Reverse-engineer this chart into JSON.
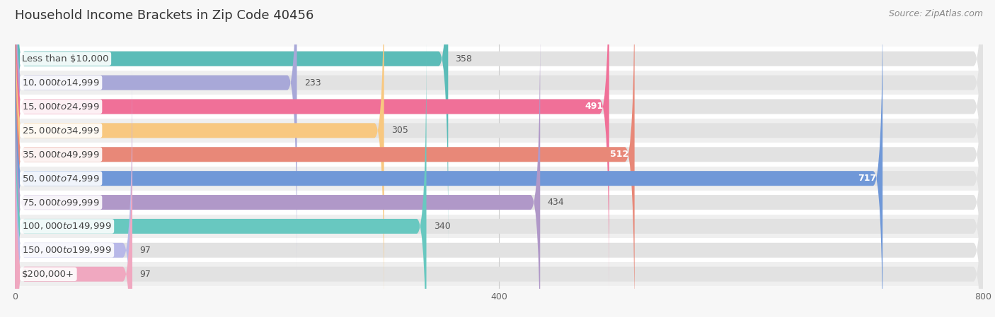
{
  "title": "Household Income Brackets in Zip Code 40456",
  "source": "Source: ZipAtlas.com",
  "categories": [
    "Less than $10,000",
    "$10,000 to $14,999",
    "$15,000 to $24,999",
    "$25,000 to $34,999",
    "$35,000 to $49,999",
    "$50,000 to $74,999",
    "$75,000 to $99,999",
    "$100,000 to $149,999",
    "$150,000 to $199,999",
    "$200,000+"
  ],
  "values": [
    358,
    233,
    491,
    305,
    512,
    717,
    434,
    340,
    97,
    97
  ],
  "bar_colors": [
    "#5bbcb8",
    "#a8a8d8",
    "#f07098",
    "#f8c880",
    "#e88878",
    "#7098d8",
    "#b098c8",
    "#68c8c0",
    "#b8b8e8",
    "#f0a8c0"
  ],
  "value_inside": [
    false,
    false,
    true,
    false,
    true,
    true,
    false,
    false,
    false,
    false
  ],
  "xlim": [
    0,
    800
  ],
  "xticks": [
    0,
    400,
    800
  ],
  "background_color": "#f7f7f7",
  "row_colors": [
    "#ffffff",
    "#efefef"
  ],
  "bar_bg_color": "#e2e2e2",
  "title_fontsize": 13,
  "label_fontsize": 9.5,
  "value_fontsize": 9,
  "source_fontsize": 9,
  "tick_fontsize": 9
}
